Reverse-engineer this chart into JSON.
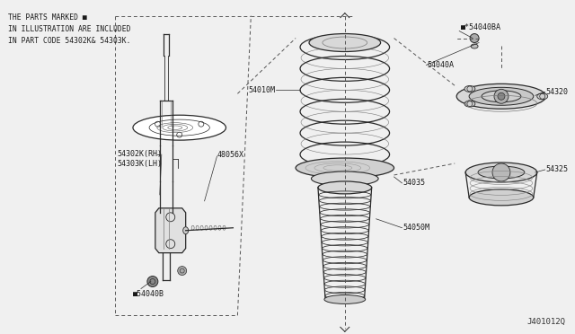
{
  "bg_color": "#e8e8e8",
  "line_color": "#2a2a2a",
  "title_code": "J401012Q",
  "note_lines": [
    "THE PARTS MARKED ■",
    "IN ILLUSTRATION ARE INCLUDED",
    "IN PART CODE 54302K& 54303K."
  ],
  "label_54302": "54302K(RH)\n54303K(LH)",
  "label_48056": "48056X",
  "label_54040b": "■54040B",
  "label_54010": "54010M",
  "label_54035": "54035",
  "label_54050": "54050M",
  "label_54040a": "54040A",
  "label_54040ba": "■*54040BA",
  "label_54320": "54320",
  "label_54325": "54325"
}
